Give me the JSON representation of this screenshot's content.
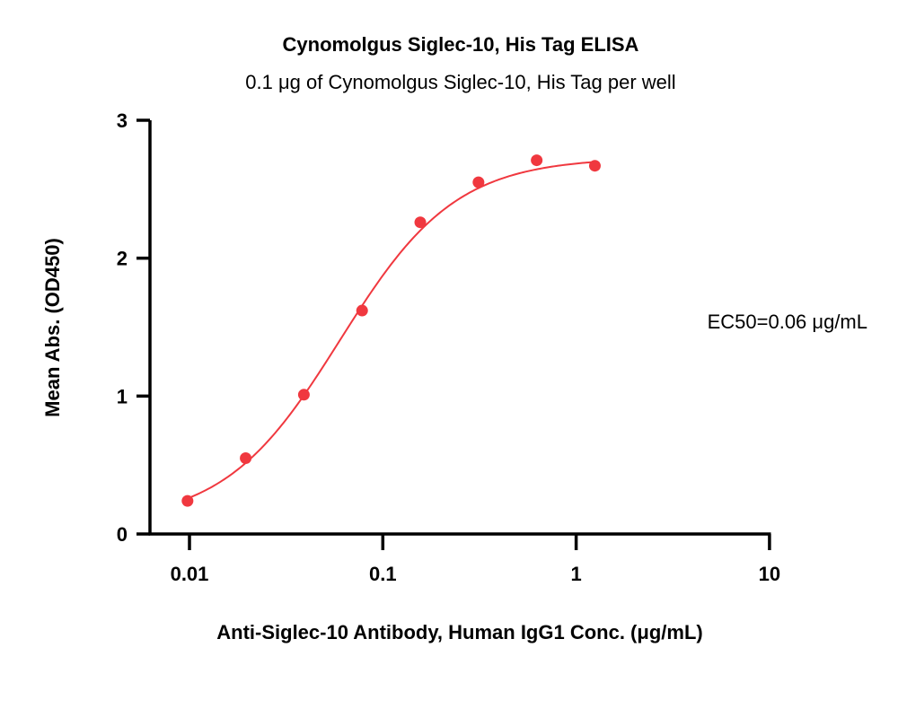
{
  "chart_data": {
    "type": "scatter",
    "title": "Cynomolgus Siglec-10, His Tag ELISA",
    "subtitle": "0.1 μg of Cynomolgus Siglec-10, His Tag per well",
    "xlabel": "Anti-Siglec-10 Antibody, Human IgG1 Conc. (μg/mL)",
    "ylabel": "Mean Abs. (OD450)",
    "x_scale": "log",
    "xlim": [
      0.007,
      10
    ],
    "ylim": [
      0,
      3
    ],
    "x_ticks": [
      0.01,
      0.1,
      1,
      10
    ],
    "x_tick_labels": [
      "0.01",
      "0.1",
      "1",
      "10"
    ],
    "y_ticks": [
      0,
      1,
      2,
      3
    ],
    "y_tick_labels": [
      "0",
      "1",
      "2",
      "3"
    ],
    "grid": false,
    "annotation": "EC50=0.06 μg/mL",
    "color": "#f0383f",
    "series": [
      {
        "x": [
          0.00977,
          0.01953,
          0.03906,
          0.07813,
          0.15625,
          0.3125,
          0.625,
          1.25
        ],
        "y": [
          0.24,
          0.55,
          1.01,
          1.62,
          2.26,
          2.55,
          2.71,
          2.67
        ]
      }
    ],
    "fit": {
      "model": "4PL",
      "bottom": 0.08,
      "top": 2.73,
      "ec50": 0.06,
      "hill": 1.45
    }
  }
}
